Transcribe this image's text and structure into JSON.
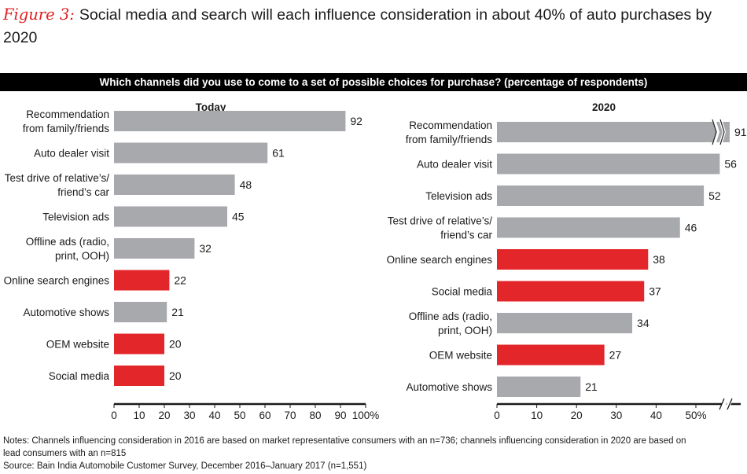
{
  "figure_label": "Figure 3:",
  "title": "Social media and search will each influence consideration in about 40% of auto purchases by 2020",
  "banner": "Which channels did you use to come to a set of possible choices for purchase? (percentage of respondents)",
  "colors": {
    "highlight": "#e3262a",
    "default": "#a7a9ac",
    "axis": "#1a1a1a",
    "banner_bg": "#000000"
  },
  "notes": [
    "Notes: Channels influencing consideration in 2016 are based on market representative consumers with an n=736; channels influencing consideration in 2020 are based on",
    "lead consumers with an n=815",
    "Source: Bain India Automobile Customer Survey, December 2016–January 2017 (n=1,551)"
  ],
  "chart_data": [
    {
      "type": "bar",
      "orientation": "horizontal",
      "title": "Today",
      "categories": [
        [
          "Recommendation",
          "from family/friends"
        ],
        [
          "Auto dealer visit"
        ],
        [
          "Test drive of relative’s/",
          "friend’s car"
        ],
        [
          "Television ads"
        ],
        [
          "Offline ads (radio,",
          "print, OOH)"
        ],
        [
          "Online search engines"
        ],
        [
          "Automotive shows"
        ],
        [
          "OEM website"
        ],
        [
          "Social media"
        ]
      ],
      "values": [
        92,
        61,
        48,
        45,
        32,
        22,
        21,
        20,
        20
      ],
      "highlighted": [
        false,
        false,
        false,
        false,
        false,
        true,
        false,
        true,
        true
      ],
      "xlim": [
        0,
        100
      ],
      "xticks": [
        "0",
        "10",
        "20",
        "30",
        "40",
        "50",
        "60",
        "70",
        "80",
        "90",
        "100%"
      ],
      "axis_break": false
    },
    {
      "type": "bar",
      "orientation": "horizontal",
      "title": "2020",
      "categories": [
        [
          "Recommendation",
          "from family/friends"
        ],
        [
          "Auto dealer visit"
        ],
        [
          "Television ads"
        ],
        [
          "Test drive of relative’s/",
          "friend’s car"
        ],
        [
          "Online search engines"
        ],
        [
          "Social media"
        ],
        [
          "Offline ads (radio,",
          "print, OOH)"
        ],
        [
          "OEM website"
        ],
        [
          "Automotive shows"
        ]
      ],
      "values": [
        91,
        56,
        52,
        46,
        38,
        37,
        34,
        27,
        21
      ],
      "highlighted": [
        false,
        false,
        false,
        false,
        true,
        true,
        false,
        true,
        false
      ],
      "xlim": [
        0,
        50
      ],
      "xticks": [
        "0",
        "10",
        "20",
        "30",
        "40",
        "50%"
      ],
      "axis_break": true
    }
  ]
}
